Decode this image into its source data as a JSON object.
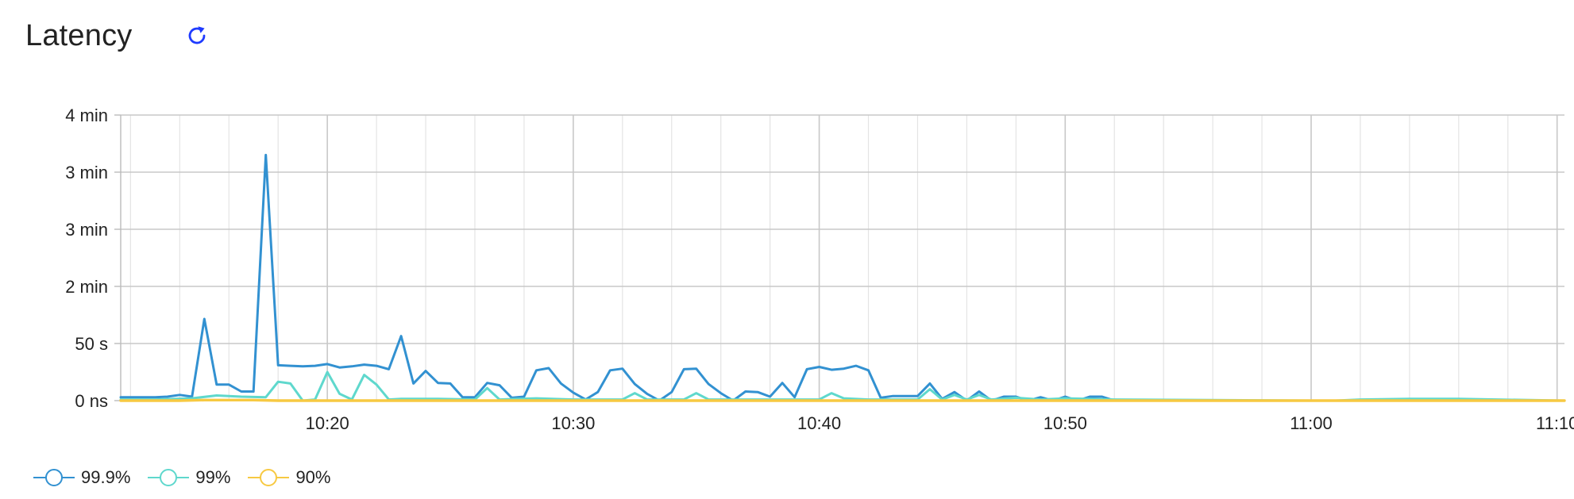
{
  "header": {
    "title": "Latency",
    "refresh_icon": "refresh-icon"
  },
  "colors": {
    "p999": "#3291d1",
    "p99": "#5fd8cd",
    "p90": "#f7c942",
    "refresh": "#1f3bff",
    "grid_major": "#c8c8c8",
    "grid_minor": "#e4e4e4"
  },
  "legend": [
    {
      "label": "99.9%",
      "color": "#3291d1"
    },
    {
      "label": "99%",
      "color": "#5fd8cd"
    },
    {
      "label": "90%",
      "color": "#f7c942"
    }
  ],
  "chart_data": {
    "type": "line",
    "title": "Latency",
    "xlabel": "",
    "ylabel": "",
    "x_ticks": [
      {
        "label": "10:20",
        "t": 20
      },
      {
        "label": "10:30",
        "t": 30
      },
      {
        "label": "10:40",
        "t": 40
      },
      {
        "label": "10:50",
        "t": 50
      },
      {
        "label": "11:00",
        "t": 60
      },
      {
        "label": "11:10",
        "t": 70
      }
    ],
    "y_ticks": [
      {
        "label": "0 ns",
        "v": 0
      },
      {
        "label": "50 s",
        "v": 1
      },
      {
        "label": "2 min",
        "v": 2
      },
      {
        "label": "3 min",
        "v": 3
      },
      {
        "label": "3 min",
        "v": 4
      },
      {
        "label": "4 min",
        "v": 5
      }
    ],
    "xlim": [
      11.6,
      70.3
    ],
    "ylim": [
      0,
      5
    ],
    "grid": true,
    "legend_position": "bottom-left",
    "series": [
      {
        "name": "99.9%",
        "color": "#3291d1",
        "x": [
          11.6,
          12.5,
          13.0,
          13.5,
          14.0,
          14.5,
          15.0,
          15.5,
          16.0,
          16.5,
          17.0,
          17.5,
          18.0,
          18.5,
          19.0,
          19.5,
          20.0,
          20.5,
          21.0,
          21.5,
          22.0,
          22.5,
          23.0,
          23.5,
          24.0,
          24.5,
          25.0,
          25.5,
          26.0,
          26.5,
          27.0,
          27.5,
          28.0,
          28.5,
          29.0,
          29.5,
          30.0,
          30.5,
          31.0,
          31.5,
          32.0,
          32.5,
          33.0,
          33.5,
          34.0,
          34.5,
          35.0,
          35.5,
          36.0,
          36.5,
          37.0,
          37.5,
          38.0,
          38.5,
          39.0,
          39.5,
          40.0,
          40.5,
          41.0,
          41.5,
          42.0,
          42.5,
          43.0,
          43.5,
          44.0,
          44.5,
          45.0,
          45.5,
          46.0,
          46.5,
          47.0,
          47.5,
          48.0,
          48.5,
          49.0,
          49.5,
          50.0,
          50.5,
          51.0,
          51.5,
          52.0,
          55.0,
          60.0,
          65.0,
          70.3
        ],
        "y": [
          0.06,
          0.06,
          0.06,
          0.07,
          0.1,
          0.07,
          1.43,
          0.28,
          0.28,
          0.16,
          0.16,
          4.3,
          0.62,
          0.61,
          0.6,
          0.61,
          0.64,
          0.58,
          0.6,
          0.63,
          0.61,
          0.55,
          1.13,
          0.3,
          0.52,
          0.31,
          0.3,
          0.06,
          0.06,
          0.31,
          0.27,
          0.05,
          0.07,
          0.53,
          0.57,
          0.3,
          0.14,
          0.02,
          0.15,
          0.53,
          0.56,
          0.29,
          0.12,
          0.0,
          0.15,
          0.55,
          0.56,
          0.29,
          0.13,
          0.0,
          0.16,
          0.15,
          0.07,
          0.31,
          0.06,
          0.55,
          0.59,
          0.54,
          0.56,
          0.61,
          0.53,
          0.05,
          0.08,
          0.08,
          0.08,
          0.3,
          0.03,
          0.15,
          0.0,
          0.16,
          0.0,
          0.07,
          0.07,
          0.0,
          0.06,
          0.0,
          0.07,
          0.0,
          0.07,
          0.07,
          0.0,
          0.0,
          0.0,
          0.0,
          0.0
        ]
      },
      {
        "name": "99%",
        "color": "#5fd8cd",
        "x": [
          11.6,
          13.0,
          14.5,
          15.5,
          16.5,
          17.5,
          18.0,
          18.5,
          19.0,
          19.5,
          20.0,
          20.5,
          21.0,
          21.5,
          22.0,
          22.5,
          23.0,
          24.5,
          26.0,
          26.5,
          27.0,
          28.5,
          30.0,
          32.0,
          32.5,
          33.0,
          34.5,
          35.0,
          35.5,
          36.0,
          37.0,
          39.0,
          40.0,
          40.5,
          41.0,
          42.0,
          43.0,
          44.0,
          44.5,
          45.0,
          45.5,
          46.0,
          46.5,
          47.0,
          48.0,
          49.0,
          50.0,
          52.0,
          60.0,
          61.0,
          62.0,
          64.0,
          66.0,
          70.3
        ],
        "y": [
          0.02,
          0.02,
          0.04,
          0.09,
          0.07,
          0.06,
          0.33,
          0.3,
          0.0,
          0.02,
          0.5,
          0.12,
          0.02,
          0.45,
          0.28,
          0.02,
          0.03,
          0.03,
          0.02,
          0.22,
          0.02,
          0.04,
          0.02,
          0.02,
          0.13,
          0.02,
          0.02,
          0.13,
          0.02,
          0.02,
          0.02,
          0.02,
          0.02,
          0.13,
          0.04,
          0.02,
          0.02,
          0.02,
          0.2,
          0.02,
          0.1,
          0.02,
          0.1,
          0.02,
          0.05,
          0.02,
          0.04,
          0.02,
          0.0,
          0.0,
          0.02,
          0.03,
          0.03,
          0.0
        ]
      },
      {
        "name": "90%",
        "color": "#f7c942",
        "x": [
          11.6,
          14.0,
          15.0,
          17.0,
          18.0,
          30.0,
          40.0,
          50.0,
          60.0,
          70.3
        ],
        "y": [
          0.0,
          0.0,
          0.01,
          0.01,
          0.0,
          0.0,
          0.0,
          0.0,
          0.0,
          0.0
        ]
      }
    ]
  }
}
